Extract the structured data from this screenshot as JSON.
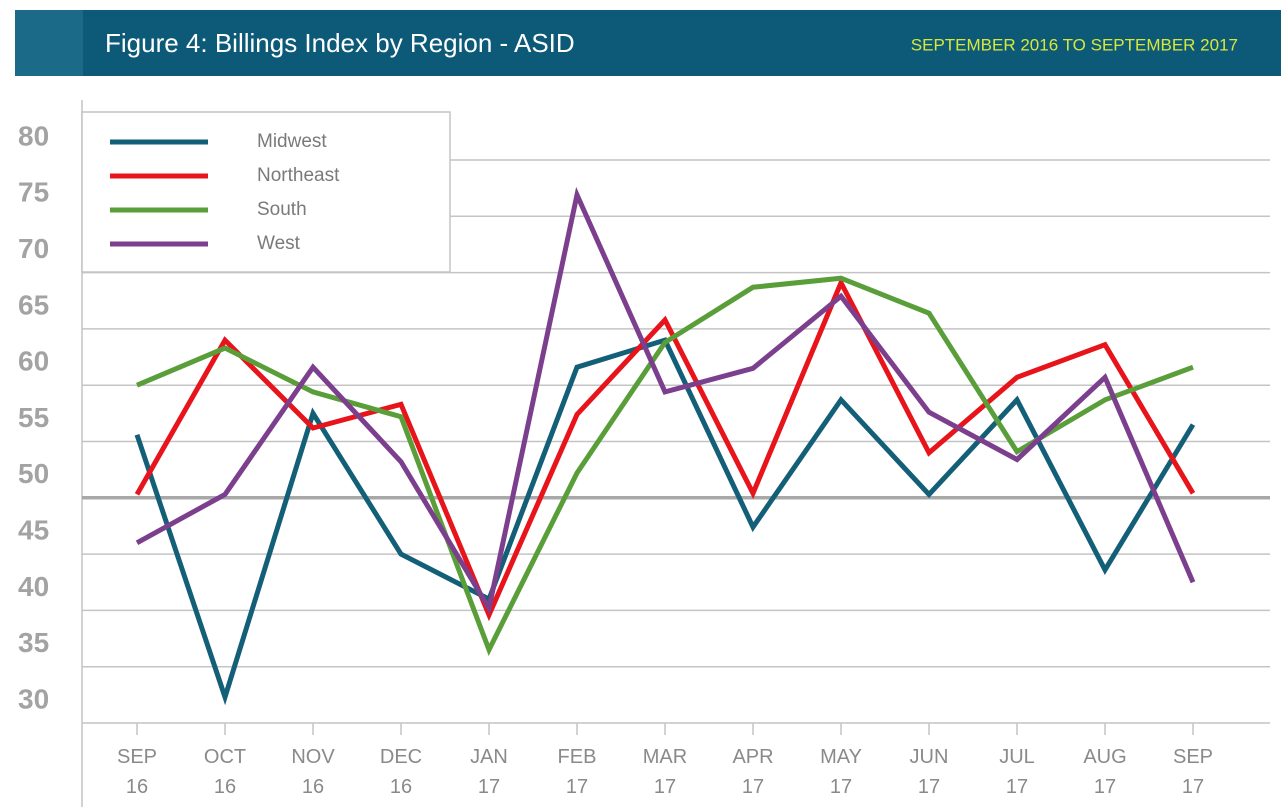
{
  "chart_data": {
    "type": "line",
    "title": "Figure 4: Billings Index by Region - ASID",
    "subtitle": "SEPTEMBER 2016 TO SEPTEMBER 2017",
    "categories": [
      "SEP 16",
      "OCT 16",
      "NOV 16",
      "DEC 16",
      "JAN 17",
      "FEB 17",
      "MAR 17",
      "APR 17",
      "MAY 17",
      "JUN 17",
      "JUL 17",
      "AUG 17",
      "SEP 17"
    ],
    "series": [
      {
        "name": "Midwest",
        "color": "#145f78",
        "values": [
          55.6,
          32.3,
          57.5,
          45,
          41,
          61.6,
          64,
          47.4,
          58.7,
          50.3,
          58.7,
          43.6,
          56.5
        ]
      },
      {
        "name": "Northeast",
        "color": "#e8141b",
        "values": [
          50.3,
          64,
          56.2,
          58.3,
          39.6,
          57.4,
          65.8,
          50.4,
          69.1,
          54,
          60.7,
          63.6,
          50.4
        ]
      },
      {
        "name": "South",
        "color": "#5a9e3a",
        "values": [
          60,
          63.3,
          59.4,
          57.2,
          36.5,
          52.2,
          63.8,
          68.7,
          69.5,
          66.4,
          54.1,
          58.7,
          61.6
        ]
      },
      {
        "name": "West",
        "color": "#7b3f8e",
        "values": [
          46,
          50.3,
          61.6,
          53.2,
          40.2,
          76.9,
          59.4,
          61.5,
          67.9,
          57.6,
          53.4,
          60.7,
          42.5
        ]
      }
    ],
    "ylim": [
      30,
      80
    ],
    "yticks": [
      30,
      35,
      40,
      45,
      50,
      55,
      60,
      65,
      70,
      75,
      80
    ],
    "reference_line": 50,
    "grid": true,
    "legend": "top-left"
  }
}
